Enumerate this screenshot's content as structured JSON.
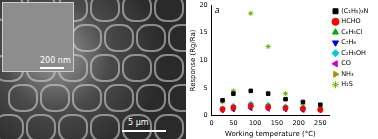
{
  "chart_data": {
    "type": "scatter",
    "annotation": "a",
    "x_label": "Working temperature (°C)",
    "y_label": "Response (Rg/Ra)",
    "xlim": [
      0,
      270
    ],
    "xticks": [
      0,
      50,
      100,
      150,
      200,
      250
    ],
    "ylim": [
      0,
      20
    ],
    "yticks": [
      0,
      5,
      10,
      15,
      20
    ],
    "grid": false,
    "legend": "upper right",
    "series": [
      {
        "name": "(C₂H₅)₃N",
        "color": "#000000",
        "marker": "square",
        "x": [
          25,
          50,
          90,
          130,
          170,
          210,
          250
        ],
        "values": [
          2.8,
          4.0,
          4.5,
          4.0,
          3.0,
          2.5,
          2.0
        ]
      },
      {
        "name": "HCHO",
        "color": "#ff0000",
        "marker": "circle",
        "x": [
          25,
          50,
          90,
          130,
          170,
          210,
          250
        ],
        "values": [
          1.2,
          1.5,
          1.8,
          1.6,
          1.4,
          1.3,
          1.1
        ]
      },
      {
        "name": "C₆H₅Cl",
        "color": "#00aa00",
        "marker": "triangle",
        "x": [
          25,
          50,
          90,
          130,
          170,
          210,
          250
        ],
        "values": [
          1.1,
          1.3,
          1.6,
          1.5,
          1.3,
          1.2,
          1.1
        ]
      },
      {
        "name": "C₇H₈",
        "color": "#0000ff",
        "marker": "triangle_down",
        "x": [
          25,
          50,
          90,
          130,
          170,
          210,
          250
        ],
        "values": [
          1.0,
          1.2,
          1.5,
          1.4,
          1.2,
          1.1,
          1.0
        ]
      },
      {
        "name": "C₂H₅OH",
        "color": "#00cccc",
        "marker": "diamond",
        "x": [
          25,
          50,
          90,
          130,
          170,
          210,
          250
        ],
        "values": [
          1.3,
          1.8,
          2.2,
          2.0,
          1.7,
          1.5,
          1.2
        ]
      },
      {
        "name": "CO",
        "color": "#cc00cc",
        "marker": "triangle_left",
        "x": [
          25,
          50,
          90,
          130,
          170,
          210,
          250
        ],
        "values": [
          1.0,
          1.1,
          1.3,
          1.2,
          1.1,
          1.0,
          1.0
        ]
      },
      {
        "name": "NH₃",
        "color": "#999900",
        "marker": "triangle_right",
        "x": [
          25,
          50,
          90,
          130,
          170,
          210,
          250
        ],
        "values": [
          1.1,
          1.4,
          1.7,
          1.6,
          1.4,
          1.2,
          1.1
        ]
      },
      {
        "name": "H₂S",
        "color": "#66bb00",
        "marker": "star",
        "x": [
          25,
          50,
          90,
          130,
          170,
          210,
          250
        ],
        "values": [
          2.5,
          4.5,
          18.5,
          12.5,
          4.0,
          2.0,
          1.5
        ]
      }
    ]
  },
  "micrograph": {
    "scale_bars": [
      "200 nm",
      "5 μm"
    ]
  }
}
